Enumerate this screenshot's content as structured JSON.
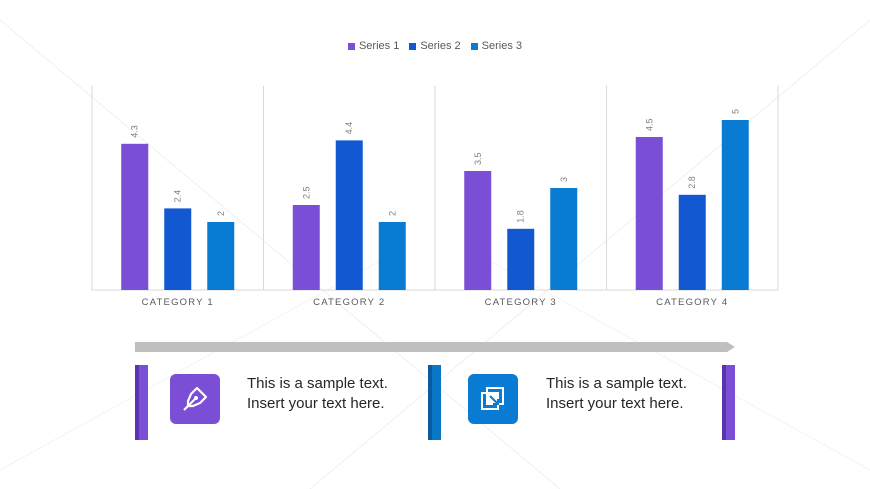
{
  "colors": {
    "series1": "#7a4fd6",
    "series2": "#1258d0",
    "series3": "#0a7bd2",
    "accent_purple": "#7a4fd6",
    "accent_purple_dark": "#5a34b0",
    "accent_blue": "#0a76c8",
    "accent_blue_dark": "#0a5aa0",
    "timeline": "#bfbfbf",
    "icon1_bg": "#7a4fd6",
    "icon2_bg": "#0a7bd2"
  },
  "chart_data": {
    "type": "bar",
    "categories": [
      "CATEGORY 1",
      "CATEGORY 2",
      "CATEGORY 3",
      "CATEGORY 4"
    ],
    "series": [
      {
        "name": "Series 1",
        "values": [
          4.3,
          2.5,
          3.5,
          4.5
        ],
        "labels": [
          "4.3",
          "2.5",
          "3.5",
          "4.5"
        ]
      },
      {
        "name": "Series 2",
        "values": [
          2.4,
          4.4,
          1.8,
          2.8
        ],
        "labels": [
          "2.4",
          "4.4",
          "1.8",
          "2.8"
        ]
      },
      {
        "name": "Series 3",
        "values": [
          2,
          2,
          3,
          5
        ],
        "labels": [
          "2",
          "2",
          "3",
          "5"
        ]
      }
    ],
    "ylim": [
      0,
      6
    ],
    "legend": "top-center",
    "grid": "vertical category separators"
  },
  "cards": [
    {
      "icon": "pen-nib-icon",
      "text": "This is a sample text. Insert your text here."
    },
    {
      "icon": "resize-arrow-icon",
      "text": "This is a sample text. Insert your text here."
    }
  ]
}
